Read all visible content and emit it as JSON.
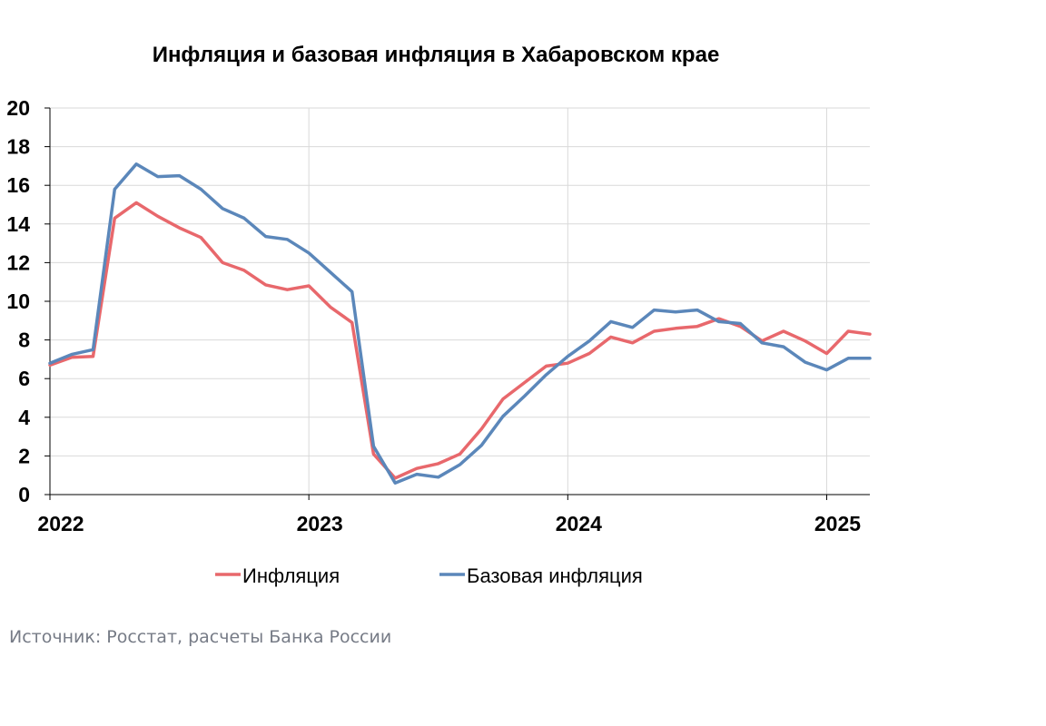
{
  "chart_data": {
    "type": "line",
    "title": "Инфляция и базовая инфляция в Хабаровском крае",
    "ylim": [
      0,
      20
    ],
    "yticks": [
      0,
      2,
      4,
      6,
      8,
      10,
      12,
      14,
      16,
      18,
      20
    ],
    "xlim": [
      0,
      38
    ],
    "xtick_positions": [
      0,
      12,
      24,
      36
    ],
    "xtick_labels": [
      "2022",
      "2023",
      "2024",
      "2025"
    ],
    "grid": true,
    "legend_position": "bottom",
    "series": [
      {
        "name": "Инфляция",
        "color": "#e8686c",
        "values": [
          6.7,
          7.1,
          7.15,
          14.3,
          15.1,
          14.4,
          13.8,
          13.3,
          12.0,
          11.6,
          10.85,
          10.6,
          10.8,
          9.7,
          8.9,
          2.1,
          0.85,
          1.35,
          1.6,
          2.1,
          3.4,
          4.95,
          5.8,
          6.65,
          6.8,
          7.3,
          8.15,
          7.85,
          8.45,
          8.6,
          8.7,
          9.1,
          8.7,
          7.95,
          8.45,
          7.95,
          7.3,
          8.45,
          8.3
        ]
      },
      {
        "name": "Базовая инфляция",
        "color": "#5b87ba",
        "values": [
          6.8,
          7.25,
          7.5,
          15.8,
          17.1,
          16.45,
          16.5,
          15.8,
          14.8,
          14.3,
          13.35,
          13.2,
          12.5,
          11.5,
          10.5,
          2.5,
          0.6,
          1.05,
          0.9,
          1.55,
          2.55,
          4.05,
          5.1,
          6.2,
          7.15,
          7.95,
          8.95,
          8.65,
          9.55,
          9.45,
          9.55,
          8.95,
          8.85,
          7.85,
          7.65,
          6.85,
          6.45,
          7.05,
          7.05
        ]
      }
    ]
  },
  "source_text": "Источник: Росстат, расчеты Банка России"
}
